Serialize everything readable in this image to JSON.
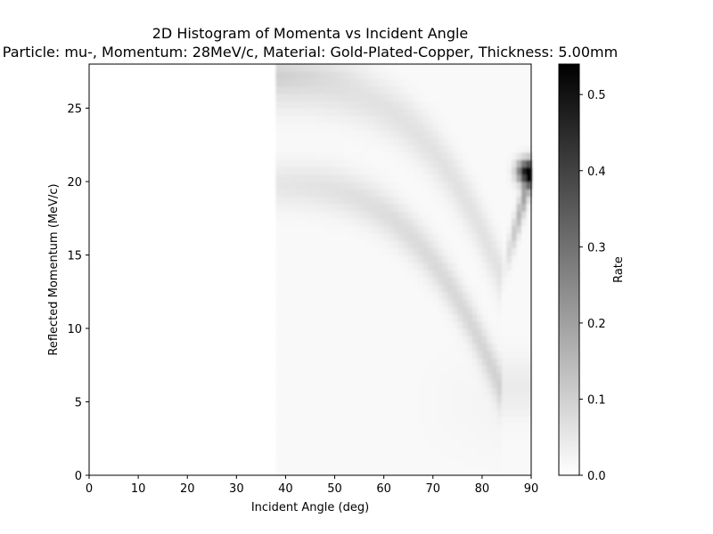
{
  "chart_data": {
    "type": "heatmap",
    "title": "2D Histogram of Momenta vs Incident Angle",
    "subtitle": "Particle: mu-, Momentum: 28MeV/c, Material: Gold-Plated-Copper, Thickness: 5.00mm",
    "xlabel": "Incident Angle (deg)",
    "ylabel": "Reflected Momentum (MeV/c)",
    "xlim": [
      0,
      90
    ],
    "ylim": [
      0,
      28
    ],
    "xticks": [
      0,
      10,
      20,
      30,
      40,
      50,
      60,
      70,
      80,
      90
    ],
    "yticks": [
      0,
      5,
      10,
      15,
      20,
      25
    ],
    "grid": false,
    "colormap": "Greys",
    "colorbar": {
      "label": "Rate",
      "range": [
        0,
        0.54
      ],
      "ticks": [
        "0.0",
        "0.1",
        "0.2",
        "0.3",
        "0.4",
        "0.5"
      ]
    },
    "description_of_density": {
      "populated_angle_range_deg": [
        38,
        90
      ],
      "upper_band_momentum_at_40deg": 26.5,
      "lower_band_momentum_at_40deg": 19.8,
      "bands_converge_near_angle_deg": 84,
      "peak_cluster": {
        "angle_deg": 89,
        "momentum": 20.7,
        "rate": 0.54
      }
    }
  }
}
